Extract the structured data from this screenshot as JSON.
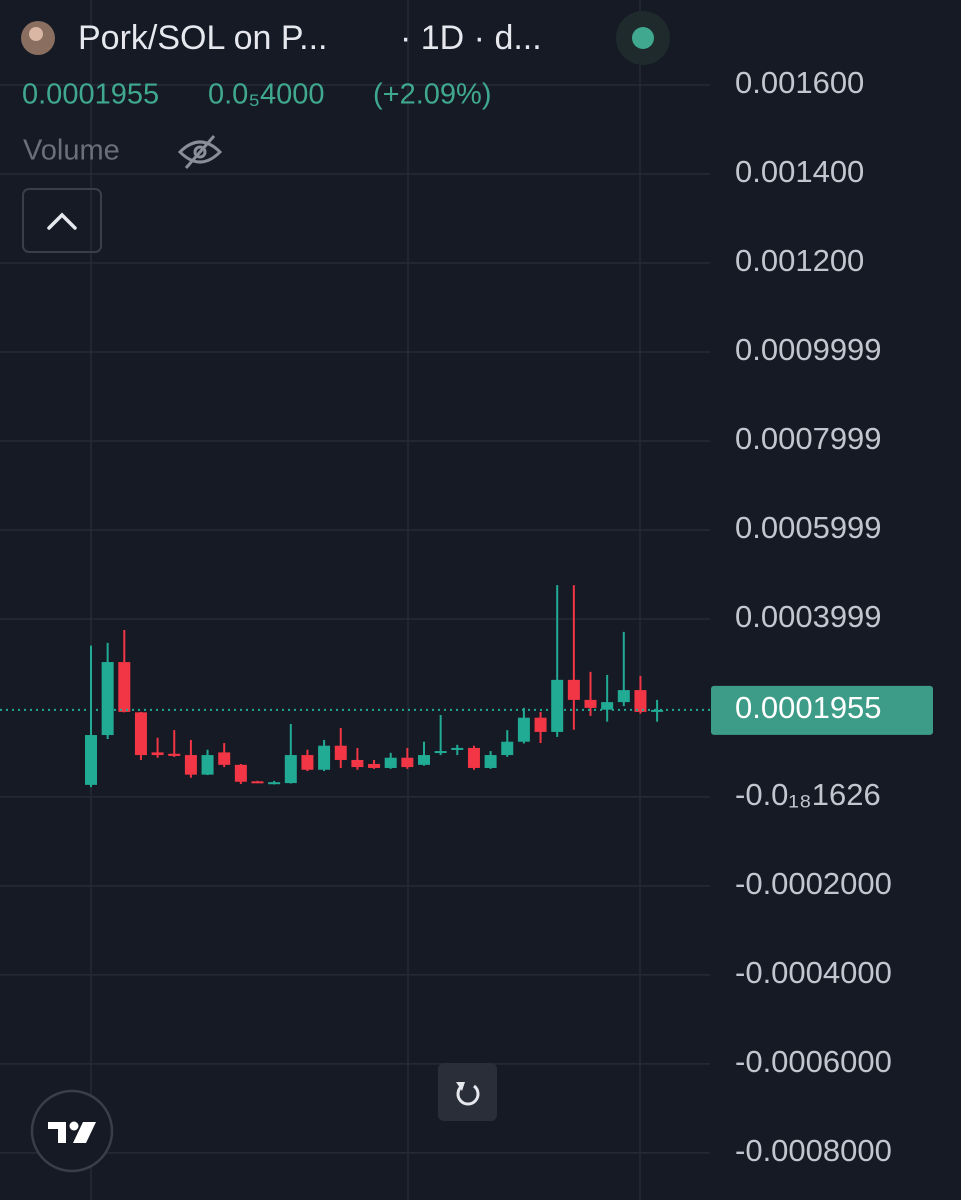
{
  "chart_data": {
    "type": "candlestick",
    "title": "Pork/SOL on P...",
    "subtitle": "· 1D · d...",
    "last_price": 0.0001955,
    "change": "0.0₅4000",
    "change_percent": "(+2.09%)",
    "volume_label": "Volume",
    "up_color": "#22ab94",
    "down_color": "#f23645",
    "grid": true,
    "ylim": [
      -0.000906,
      0.001791
    ],
    "yticks": [
      {
        "value": 0.0016,
        "label": "0.001600"
      },
      {
        "value": 0.0014,
        "label": "0.001400"
      },
      {
        "value": 0.0012,
        "label": "0.001200"
      },
      0.0009999,
      0.0007999,
      0.0005999,
      0.0003999,
      {
        "value": -1.626e-22,
        "label": "-0.0₁₈1626"
      },
      {
        "value": -0.0002,
        "label": "-0.0002000"
      },
      {
        "value": -0.0004,
        "label": "-0.0004000"
      },
      {
        "value": -0.0006,
        "label": "-0.0006000"
      },
      {
        "value": -0.0008,
        "label": "-0.0008000"
      }
    ],
    "open": [
      2.7e-05,
      0.000139,
      0.000303,
      0.00019,
      0.0001,
      9.7e-05,
      9.4e-05,
      5e-05,
      0.0001,
      7.2e-05,
      3.5e-05,
      3e-05,
      3.1e-05,
      9.4e-05,
      6.1e-05,
      0.000115,
      8.3e-05,
      7.4e-05,
      6.5e-05,
      8.8e-05,
      7.2e-05,
      9.9e-05,
      0.000108,
      0.00011,
      6.5e-05,
      9.4e-05,
      0.000124,
      0.000178,
      0.000146,
      0.000263,
      0.000218,
      0.000196,
      0.000213,
      0.00024,
      0.000191
    ],
    "high": [
      0.00034,
      0.000346,
      0.000375,
      0.000191,
      0.000133,
      0.00015,
      0.000128,
      0.000106,
      0.000121,
      7.4e-05,
      3.6e-05,
      3.6e-05,
      0.000164,
      0.000106,
      0.000128,
      0.000155,
      0.00011,
      8.3e-05,
      9.9e-05,
      0.00011,
      0.000124,
      0.000184,
      0.000117,
      0.000115,
      0.000103,
      0.00015,
      0.0002,
      0.000191,
      0.000476,
      0.000476,
      0.000281,
      0.000274,
      0.000371,
      0.000272,
      0.000218
    ],
    "low": [
      2.2e-05,
      0.00013,
      0.00019,
      8.3e-05,
      8.8e-05,
      9e-05,
      4.3e-05,
      4.9e-05,
      6.7e-05,
      2.9e-05,
      3.1e-05,
      2.8e-05,
      3e-05,
      5.8e-05,
      5.8e-05,
      6.5e-05,
      6.1e-05,
      6.3e-05,
      6.3e-05,
      6.3e-05,
      7e-05,
      9.4e-05,
      9.4e-05,
      6.1e-05,
      6.3e-05,
      9e-05,
      0.00012,
      0.000121,
      0.000135,
      0.000151,
      0.000182,
      0.000169,
      0.000204,
      0.000187,
      0.000169
    ],
    "close": [
      0.000139,
      0.000303,
      0.000191,
      9.4e-05,
      9.4e-05,
      9.2e-05,
      5e-05,
      9.4e-05,
      7.2e-05,
      3.4e-05,
      3.2e-05,
      3.3e-05,
      9.4e-05,
      6.1e-05,
      0.000115,
      8.3e-05,
      6.7e-05,
      6.5e-05,
      8.8e-05,
      6.7e-05,
      9.4e-05,
      0.000103,
      0.00011,
      6.5e-05,
      9.4e-05,
      0.000124,
      0.000178,
      0.000146,
      0.000263,
      0.000218,
      0.0002,
      0.000213,
      0.00024,
      0.000191,
      0.0001955
    ]
  }
}
